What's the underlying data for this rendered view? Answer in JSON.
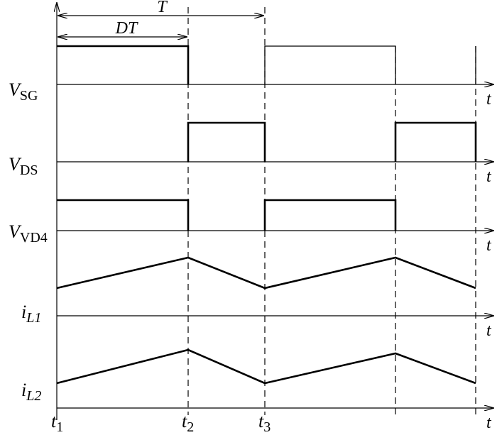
{
  "annotations": {
    "period": "T",
    "duty": "DT"
  },
  "signals": [
    {
      "symbol": "V",
      "sub": "SG",
      "axis": "t"
    },
    {
      "symbol": "V",
      "sub": "DS",
      "axis": "t"
    },
    {
      "symbol": "V",
      "sub": "VD4",
      "axis": "t"
    },
    {
      "symbol": "i",
      "sub": "L1",
      "axis": "t"
    },
    {
      "symbol": "i",
      "sub": "L2",
      "axis": "t"
    }
  ],
  "times": [
    {
      "symbol": "t",
      "sub": "1"
    },
    {
      "symbol": "t",
      "sub": "2"
    },
    {
      "symbol": "t",
      "sub": "3"
    }
  ]
}
